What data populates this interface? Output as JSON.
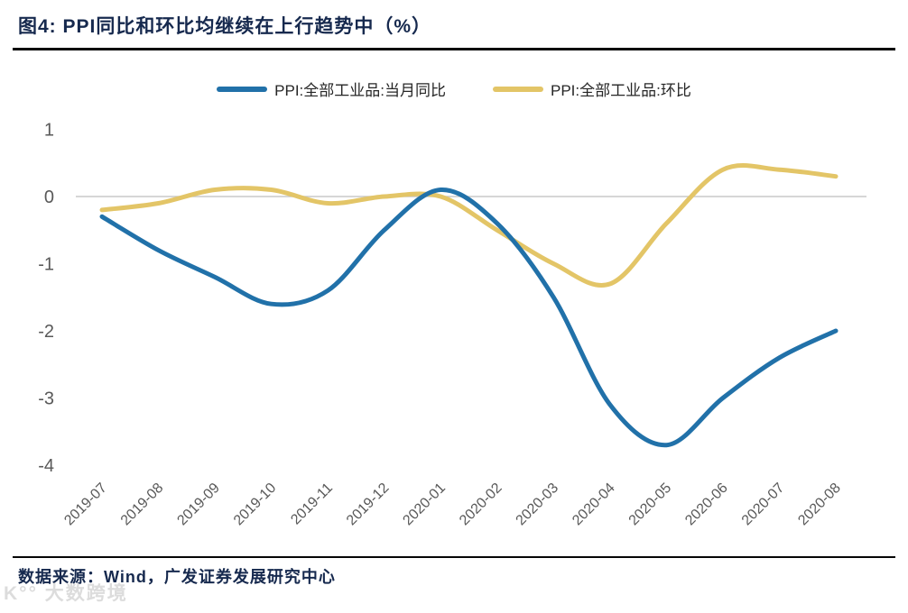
{
  "header": {
    "title": "图4:  PPI同比和环比均继续在上行趋势中（%）"
  },
  "legend": [
    {
      "label": "PPI:全部工业品:当月同比",
      "color": "#2171A9"
    },
    {
      "label": "PPI:全部工业品:环比",
      "color": "#E3C567"
    }
  ],
  "chart_data": {
    "type": "line",
    "title": "PPI同比和环比均继续在上行趋势中（%）",
    "unit": "%",
    "xlabel": "",
    "ylabel": "",
    "categories": [
      "2019-07",
      "2019-08",
      "2019-09",
      "2019-10",
      "2019-11",
      "2019-12",
      "2020-01",
      "2020-02",
      "2020-03",
      "2020-04",
      "2020-05",
      "2020-06",
      "2020-07",
      "2020-08"
    ],
    "series": [
      {
        "name": "PPI:全部工业品:当月同比",
        "color": "#2171A9",
        "values": [
          -0.3,
          -0.8,
          -1.2,
          -1.6,
          -1.4,
          -0.5,
          0.1,
          -0.4,
          -1.5,
          -3.1,
          -3.7,
          -3.0,
          -2.4,
          -2.0
        ]
      },
      {
        "name": "PPI:全部工业品:环比",
        "color": "#E3C567",
        "values": [
          -0.2,
          -0.1,
          0.1,
          0.1,
          -0.1,
          0.0,
          0.0,
          -0.5,
          -1.0,
          -1.3,
          -0.4,
          0.4,
          0.4,
          0.3
        ]
      }
    ],
    "yticks": [
      1,
      0,
      -1,
      -2,
      -3,
      -4
    ],
    "ylim": [
      -4.3,
      1.3
    ],
    "grid": "horizontal-zero-line-only",
    "legend_position": "top-center",
    "line_style": "smoothed",
    "x_tick_rotation": -45
  },
  "footer": {
    "source": "数据来源：Wind，广发证券发展研究中心"
  },
  "watermark": {
    "text": "K°° 大数跨境"
  },
  "colors": {
    "grid": "#C9C9C9",
    "axis_text": "#595959",
    "title_text": "#16294E",
    "rule": "#060606",
    "watermark": "#DCDCDC",
    "background": "#FFFFFF"
  }
}
